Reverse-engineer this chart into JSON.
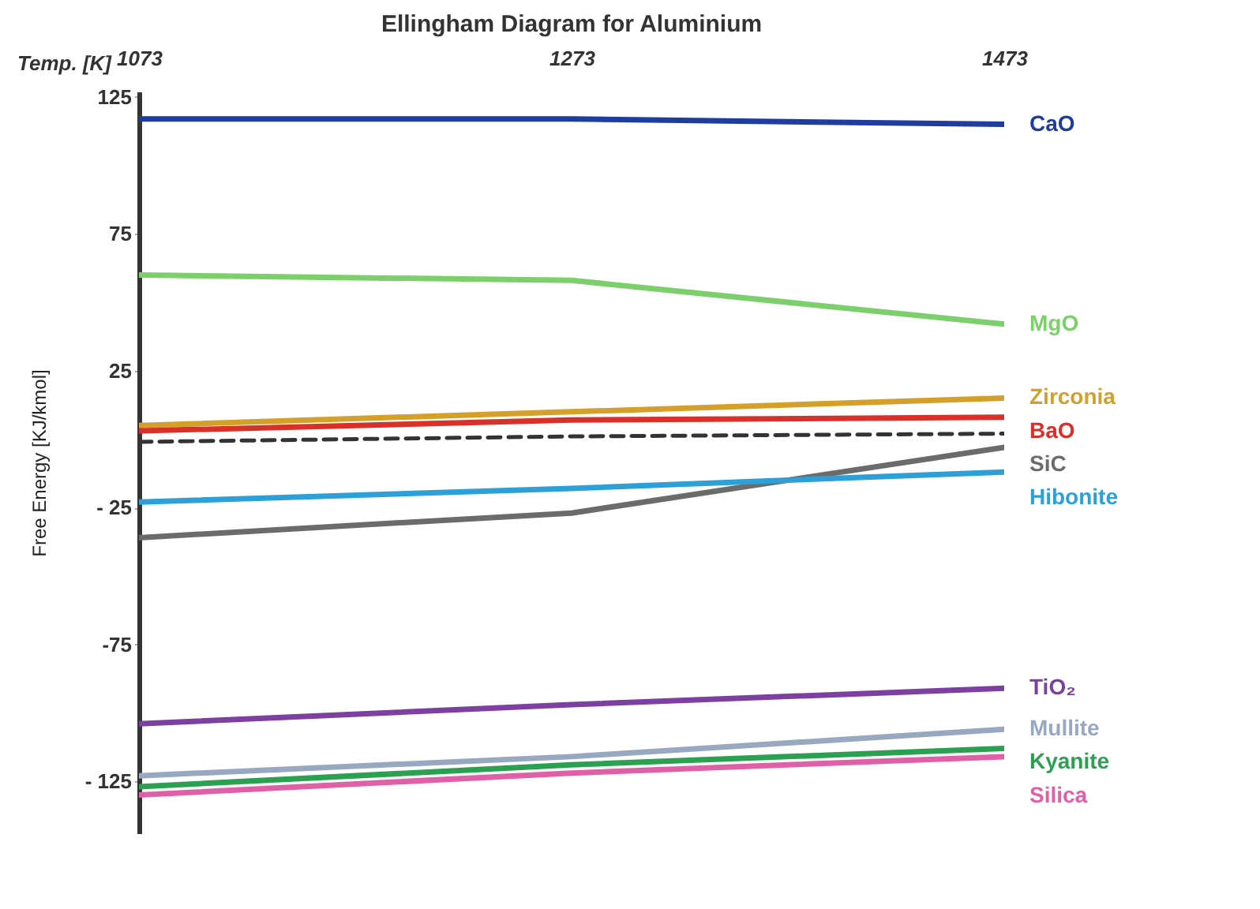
{
  "chart_data": {
    "type": "line",
    "title": "Ellingham Diagram for Aluminium",
    "xlabel": "Temp. [K]",
    "ylabel": "Free Energy [KJ/kmol]",
    "x": [
      1073,
      1273,
      1473
    ],
    "xlim": [
      1073,
      1473
    ],
    "xticks": [
      1073,
      1273,
      1473
    ],
    "ylim": [
      -144,
      127
    ],
    "yticks": [
      125,
      75,
      25,
      {
        "value": -25,
        "label": "- 25"
      },
      -75,
      {
        "value": -125,
        "label": "- 125"
      }
    ],
    "grid": false,
    "series": [
      {
        "name": "CaO",
        "color": "#1f3d9e",
        "values": [
          117,
          117,
          115
        ]
      },
      {
        "name": "MgO",
        "color": "#7ccf6a",
        "values": [
          60,
          58,
          42
        ]
      },
      {
        "name": "Zirconia",
        "color": "#d4a02a",
        "values": [
          5,
          10,
          15
        ]
      },
      {
        "name": "BaO",
        "color": "#d9302a",
        "values": [
          3,
          7,
          8
        ]
      },
      {
        "color": "#333333",
        "line_style": "dashed",
        "values": [
          -1,
          1,
          2
        ]
      },
      {
        "name": "SiC",
        "color": "#6b6b6b",
        "values": [
          -36,
          -27,
          -3
        ]
      },
      {
        "name": "Hibonite",
        "color": "#2ea0d8",
        "values": [
          -23,
          -18,
          -12
        ]
      },
      {
        "name": "TiO₂",
        "color": "#7d3fa0",
        "values": [
          -104,
          -97,
          -91
        ]
      },
      {
        "name": "Mullite",
        "color": "#98a8c0",
        "values": [
          -123,
          -116,
          -106
        ]
      },
      {
        "name": "Kyanite",
        "color": "#2aa050",
        "values": [
          -127,
          -119,
          -113
        ]
      },
      {
        "name": "Silica",
        "color": "#e060a8",
        "values": [
          -130,
          -122,
          -116
        ]
      }
    ]
  }
}
